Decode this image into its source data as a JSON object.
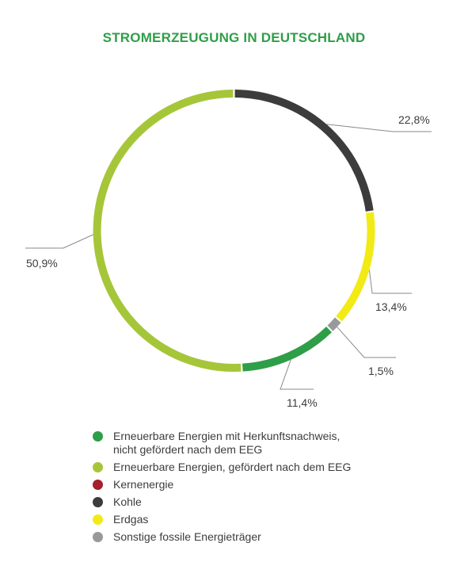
{
  "colors": {
    "title": "#2f9e48",
    "text": "#3c3c3c",
    "leader": "#8a8a8a"
  },
  "chart_data": {
    "type": "pie",
    "title": "STROMERZEUGUNG IN DEUTSCHLAND",
    "style": "donut",
    "slices": [
      {
        "name": "Kohle",
        "value": 22.8,
        "label": "22,8%",
        "color": "#3c3c3c"
      },
      {
        "name": "Erdgas",
        "value": 13.4,
        "label": "13,4%",
        "color": "#f2ea16"
      },
      {
        "name": "Sonstige fossile Energieträger",
        "value": 1.5,
        "label": "1,5%",
        "color": "#999999"
      },
      {
        "name": "Erneuerbare Energien mit Herkunftsnachweis, nicht gefördert nach dem EEG",
        "value": 11.4,
        "label": "11,4%",
        "color": "#2f9e48"
      },
      {
        "name": "Erneuerbare Energien, gefördert nach dem EEG",
        "value": 50.9,
        "label": "50,9%",
        "color": "#a6c639"
      }
    ],
    "legend": [
      {
        "label": "Erneuerbare Energien mit Herkunftsnachweis,\nnicht gefördert nach dem EEG",
        "color": "#2f9e48"
      },
      {
        "label": "Erneuerbare Energien, gefördert nach dem EEG",
        "color": "#a6c639"
      },
      {
        "label": "Kernenergie",
        "color": "#a3212a"
      },
      {
        "label": "Kohle",
        "color": "#3c3c3c"
      },
      {
        "label": "Erdgas",
        "color": "#f2ea16"
      },
      {
        "label": "Sonstige fossile Energieträger",
        "color": "#999999"
      }
    ],
    "legend_position": "bottom"
  }
}
